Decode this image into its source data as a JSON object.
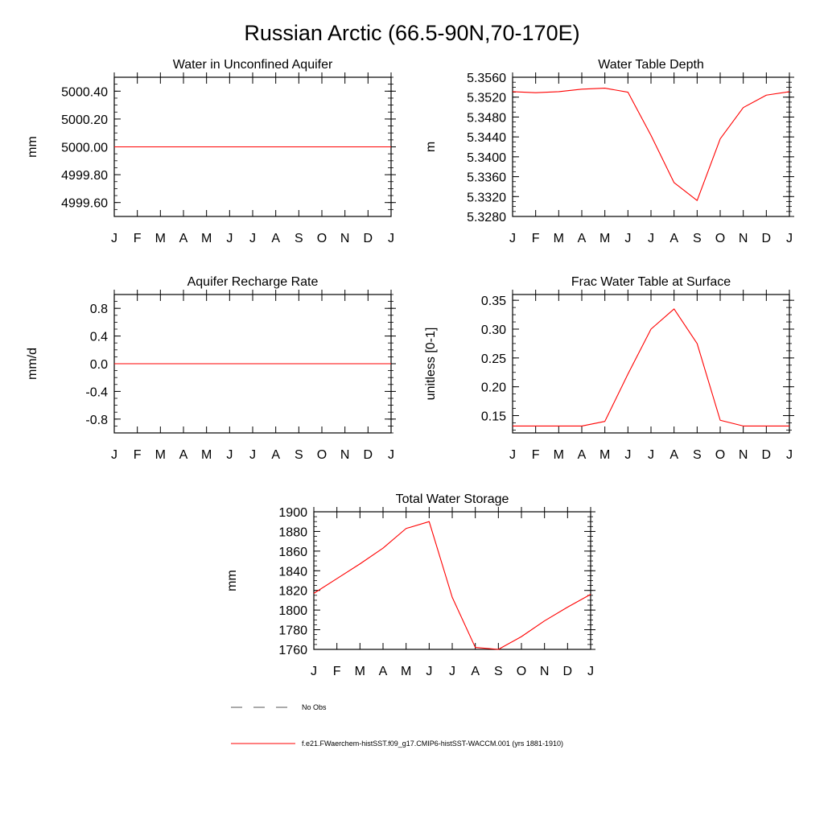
{
  "page_title": "Russian Arctic (66.5-90N,70-170E)",
  "months": [
    "J",
    "F",
    "M",
    "A",
    "M",
    "J",
    "J",
    "A",
    "S",
    "O",
    "N",
    "D",
    "J"
  ],
  "colors": {
    "model": "#ff0000",
    "obs": "#555555",
    "axis": "#000000"
  },
  "legend": {
    "obs_label": "No Obs",
    "model_label": "f.e21.FWaerchem-histSST.f09_g17.CMIP6-histSST-WACCM.001 (yrs 1881-1910)"
  },
  "chart_data": [
    {
      "type": "line",
      "title": "Water in Unconfined Aquifer",
      "ylabel": "mm",
      "ylim": [
        4999.5,
        5000.5
      ],
      "yticks": [
        4999.6,
        4999.8,
        5000.0,
        5000.2,
        5000.4
      ],
      "ytick_labels": [
        "4999.60",
        "4999.80",
        "5000.00",
        "5000.20",
        "5000.40"
      ],
      "x": [
        "J",
        "F",
        "M",
        "A",
        "M",
        "J",
        "J",
        "A",
        "S",
        "O",
        "N",
        "D",
        "J"
      ],
      "series": [
        {
          "values": [
            5000,
            5000,
            5000,
            5000,
            5000,
            5000,
            5000,
            5000,
            5000,
            5000,
            5000,
            5000,
            5000
          ]
        }
      ]
    },
    {
      "type": "line",
      "title": "Water Table Depth",
      "ylabel": "m",
      "ylim": [
        5.328,
        5.356
      ],
      "yticks": [
        5.328,
        5.332,
        5.336,
        5.34,
        5.344,
        5.348,
        5.352,
        5.356
      ],
      "ytick_labels": [
        "5.3280",
        "5.3320",
        "5.3360",
        "5.3400",
        "5.3440",
        "5.3480",
        "5.3520",
        "5.3560"
      ],
      "x": [
        "J",
        "F",
        "M",
        "A",
        "M",
        "J",
        "J",
        "A",
        "S",
        "O",
        "N",
        "D",
        "J"
      ],
      "series": [
        {
          "values": [
            5.3531,
            5.3529,
            5.3531,
            5.3536,
            5.3538,
            5.353,
            5.3443,
            5.3348,
            5.3312,
            5.3436,
            5.3499,
            5.3524,
            5.3531
          ]
        }
      ]
    },
    {
      "type": "line",
      "title": "Aquifer Recharge Rate",
      "ylabel": "mm/d",
      "ylim": [
        -1.0,
        1.0
      ],
      "yticks": [
        -0.8,
        -0.4,
        0.0,
        0.4,
        0.8
      ],
      "ytick_labels": [
        "-0.8",
        "-0.4",
        "0.0",
        "0.4",
        "0.8"
      ],
      "x": [
        "J",
        "F",
        "M",
        "A",
        "M",
        "J",
        "J",
        "A",
        "S",
        "O",
        "N",
        "D",
        "J"
      ],
      "series": [
        {
          "values": [
            0,
            0,
            0,
            0,
            0,
            0,
            0,
            0,
            0,
            0,
            0,
            0,
            0
          ]
        }
      ]
    },
    {
      "type": "line",
      "title": "Frac Water Table at Surface",
      "ylabel": "unitless [0-1]",
      "ylim": [
        0.12,
        0.36
      ],
      "yticks": [
        0.15,
        0.2,
        0.25,
        0.3,
        0.35
      ],
      "ytick_labels": [
        "0.15",
        "0.20",
        "0.25",
        "0.30",
        "0.35"
      ],
      "x": [
        "J",
        "F",
        "M",
        "A",
        "M",
        "J",
        "J",
        "A",
        "S",
        "O",
        "N",
        "D",
        "J"
      ],
      "series": [
        {
          "values": [
            0.132,
            0.132,
            0.132,
            0.132,
            0.14,
            0.222,
            0.3,
            0.335,
            0.275,
            0.142,
            0.132,
            0.132,
            0.132
          ]
        }
      ]
    },
    {
      "type": "line",
      "title": "Total Water Storage",
      "ylabel": "mm",
      "ylim": [
        1760,
        1900
      ],
      "yticks": [
        1760,
        1780,
        1800,
        1820,
        1840,
        1860,
        1880,
        1900
      ],
      "ytick_labels": [
        "1760",
        "1780",
        "1800",
        "1820",
        "1840",
        "1860",
        "1880",
        "1900"
      ],
      "x": [
        "J",
        "F",
        "M",
        "A",
        "M",
        "J",
        "J",
        "A",
        "S",
        "O",
        "N",
        "D",
        "J"
      ],
      "series": [
        {
          "values": [
            1817,
            1832,
            1847,
            1863,
            1883,
            1890,
            1813,
            1762,
            1760,
            1773,
            1789,
            1803,
            1816
          ]
        }
      ]
    }
  ]
}
